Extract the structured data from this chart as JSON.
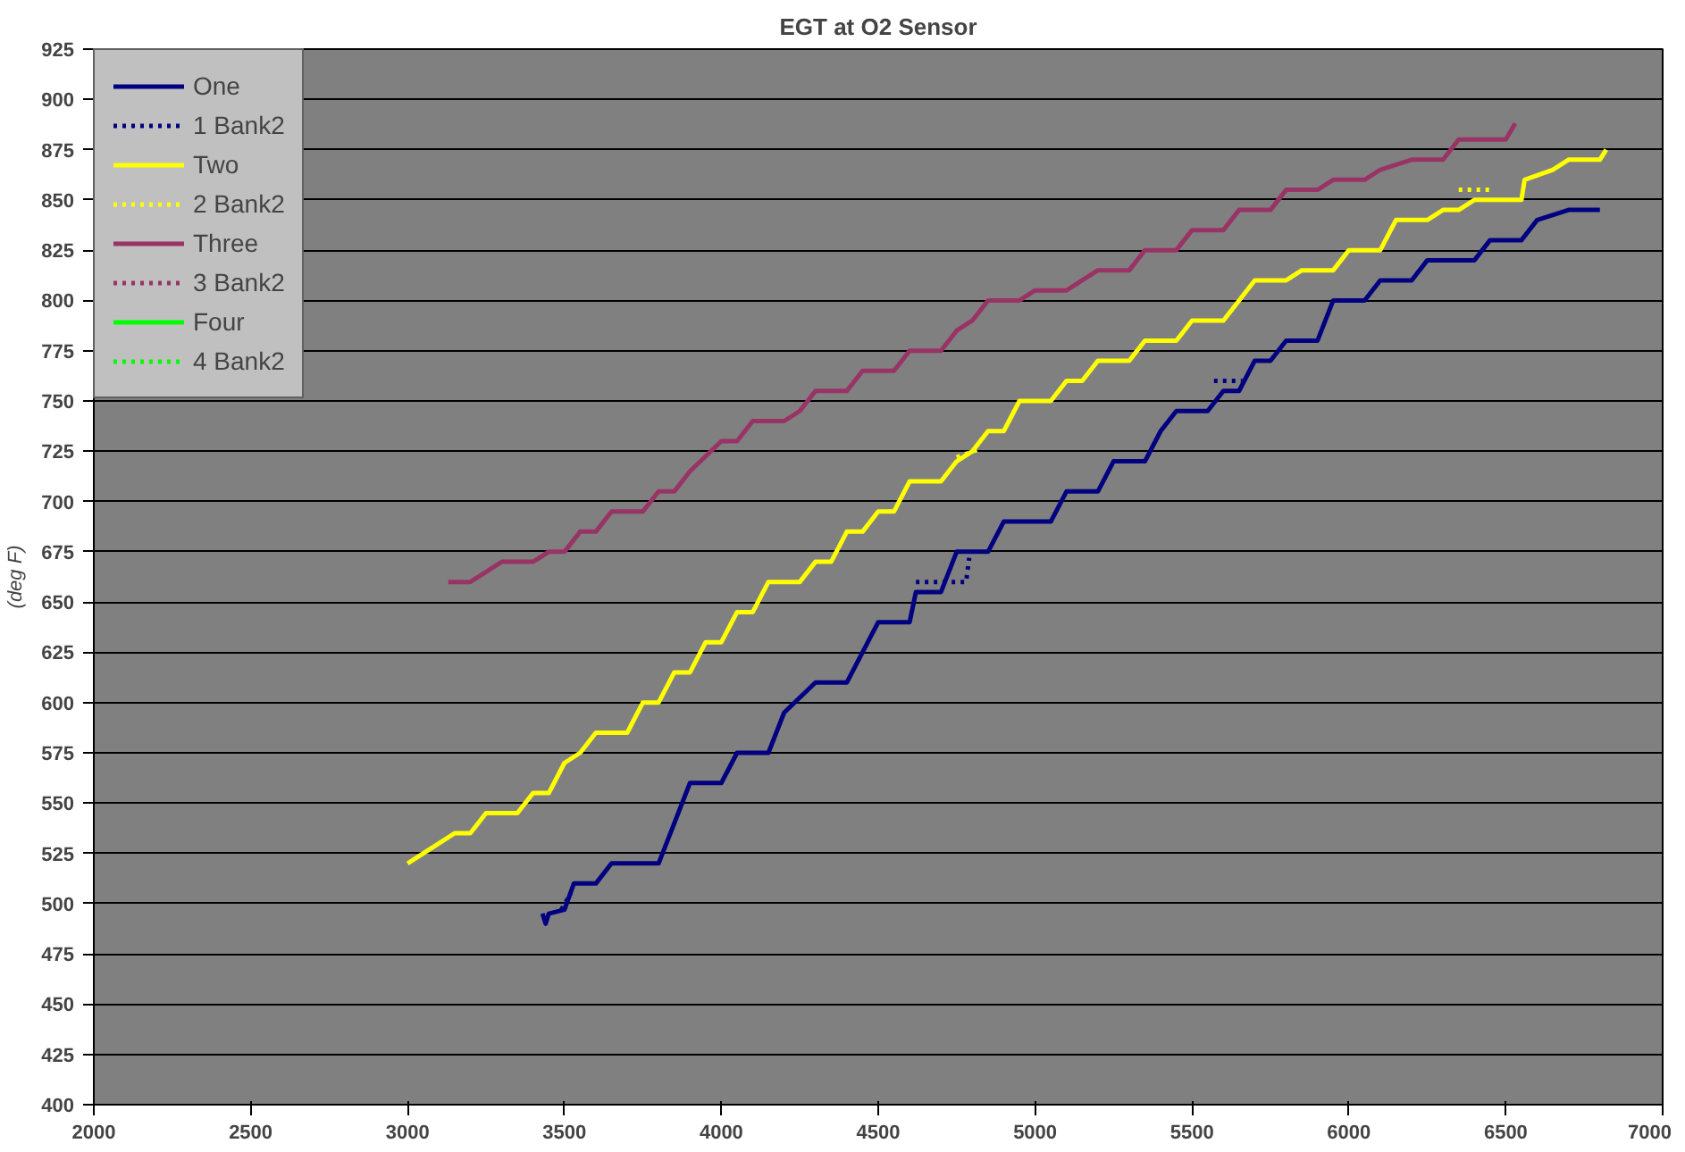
{
  "chart_data": {
    "type": "line",
    "title": "EGT at O2 Sensor",
    "ylabel": "(deg F)",
    "xlim": [
      2000,
      7000
    ],
    "ylim": [
      400,
      925
    ],
    "xticks": [
      2000,
      2500,
      3000,
      3500,
      4000,
      4500,
      5000,
      5500,
      6000,
      6500,
      7000
    ],
    "yticks": [
      400,
      425,
      450,
      475,
      500,
      525,
      550,
      575,
      600,
      625,
      650,
      675,
      700,
      725,
      750,
      775,
      800,
      825,
      850,
      875,
      900,
      925
    ],
    "grid": "y",
    "legend": "top left",
    "marker": "none",
    "series": [
      {
        "name": "One",
        "color": "#000080",
        "line_style": "solid",
        "x": [
          3430,
          3440,
          3450,
          3500,
          3530,
          3600,
          3650,
          3800,
          3850,
          3900,
          4000,
          4050,
          4150,
          4200,
          4300,
          4400,
          4450,
          4500,
          4600,
          4620,
          4700,
          4750,
          4850,
          4900,
          5050,
          5100,
          5200,
          5250,
          5350,
          5400,
          5450,
          5550,
          5600,
          5650,
          5700,
          5750,
          5800,
          5900,
          5950,
          6050,
          6100,
          6200,
          6250,
          6400,
          6450,
          6550,
          6600,
          6700,
          6800
        ],
        "values": [
          495,
          490,
          495,
          497,
          510,
          510,
          520,
          520,
          540,
          560,
          560,
          575,
          575,
          595,
          610,
          610,
          625,
          640,
          640,
          655,
          655,
          675,
          675,
          690,
          690,
          705,
          705,
          720,
          720,
          735,
          745,
          745,
          755,
          755,
          770,
          770,
          780,
          780,
          800,
          800,
          810,
          810,
          820,
          820,
          830,
          830,
          840,
          845,
          845
        ]
      },
      {
        "name": "1 Bank2",
        "color": "#000080",
        "line_style": "dotted",
        "x": [
          3490,
          3520,
          3560,
          4620,
          4780,
          4790,
          4800,
          5570,
          5660
        ],
        "values": [
          497,
          505,
          null,
          660,
          660,
          672,
          null,
          760,
          760
        ]
      },
      {
        "name": "Two",
        "color": "#ffff00",
        "line_style": "solid",
        "x": [
          3000,
          3050,
          3100,
          3150,
          3200,
          3250,
          3350,
          3400,
          3450,
          3500,
          3550,
          3600,
          3700,
          3750,
          3800,
          3850,
          3900,
          3950,
          4000,
          4050,
          4100,
          4150,
          4250,
          4300,
          4350,
          4400,
          4450,
          4500,
          4550,
          4600,
          4700,
          4750,
          4800,
          4850,
          4900,
          4950,
          5050,
          5100,
          5150,
          5200,
          5300,
          5350,
          5450,
          5500,
          5600,
          5650,
          5700,
          5800,
          5850,
          5950,
          6000,
          6100,
          6150,
          6250,
          6300,
          6350,
          6400,
          6550,
          6560,
          6650,
          6700,
          6800,
          6820
        ],
        "values": [
          520,
          525,
          530,
          535,
          535,
          545,
          545,
          555,
          555,
          570,
          575,
          585,
          585,
          600,
          600,
          615,
          615,
          630,
          630,
          645,
          645,
          660,
          660,
          670,
          670,
          685,
          685,
          695,
          695,
          710,
          710,
          720,
          725,
          735,
          735,
          750,
          750,
          760,
          760,
          770,
          770,
          780,
          780,
          790,
          790,
          800,
          810,
          810,
          815,
          815,
          825,
          825,
          840,
          840,
          845,
          845,
          850,
          850,
          860,
          865,
          870,
          870,
          875
        ]
      },
      {
        "name": "2 Bank2",
        "color": "#ffff00",
        "line_style": "dotted",
        "x": [
          4750,
          4820,
          4900,
          6350,
          6450
        ],
        "values": [
          722,
          726,
          null,
          855,
          855
        ]
      },
      {
        "name": "Three",
        "color": "#993366",
        "line_style": "solid",
        "x": [
          3130,
          3200,
          3250,
          3300,
          3400,
          3450,
          3500,
          3550,
          3600,
          3650,
          3750,
          3800,
          3850,
          3900,
          4000,
          4050,
          4100,
          4200,
          4250,
          4300,
          4400,
          4450,
          4550,
          4600,
          4700,
          4750,
          4800,
          4850,
          4950,
          5000,
          5100,
          5200,
          5300,
          5350,
          5450,
          5500,
          5600,
          5650,
          5750,
          5800,
          5900,
          5950,
          6050,
          6100,
          6200,
          6300,
          6350,
          6500,
          6530
        ],
        "values": [
          660,
          660,
          665,
          670,
          670,
          675,
          675,
          685,
          685,
          695,
          695,
          705,
          705,
          715,
          730,
          730,
          740,
          740,
          745,
          755,
          755,
          765,
          765,
          775,
          775,
          785,
          790,
          800,
          800,
          805,
          805,
          815,
          815,
          825,
          825,
          835,
          835,
          845,
          845,
          855,
          855,
          860,
          860,
          865,
          870,
          870,
          880,
          880,
          888
        ]
      },
      {
        "name": "3 Bank2",
        "color": "#993366",
        "line_style": "dotted"
      },
      {
        "name": "Four",
        "color": "#00ff00",
        "line_style": "solid"
      },
      {
        "name": "4 Bank2",
        "color": "#00ff00",
        "line_style": "dotted"
      }
    ]
  }
}
